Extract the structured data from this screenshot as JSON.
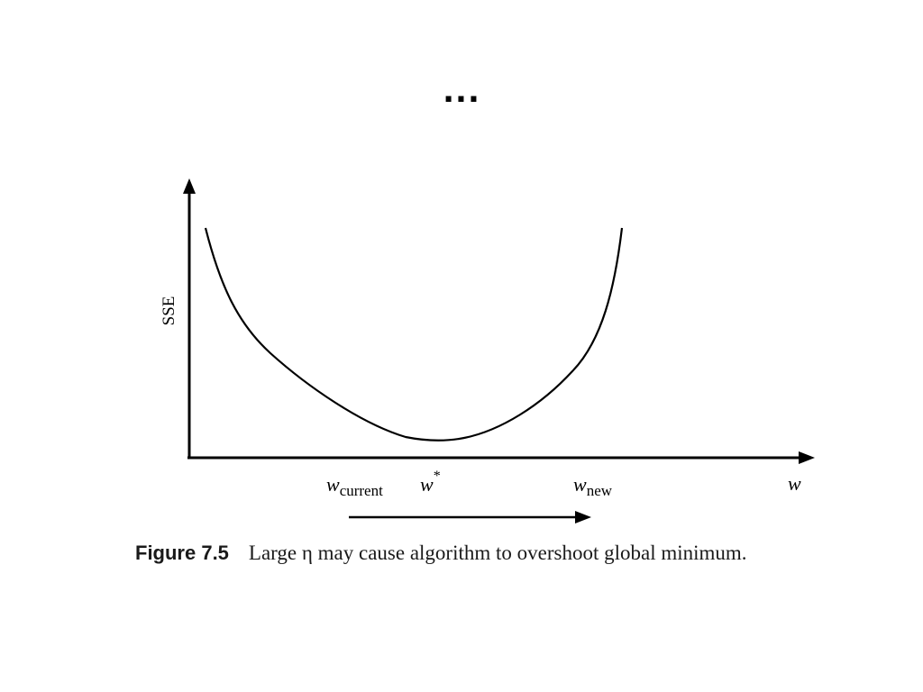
{
  "slide": {
    "title": "..."
  },
  "diagram": {
    "y_axis_label": "SSE",
    "x_axis_label": "w",
    "marks": {
      "w_current": {
        "base": "w",
        "sub": "current"
      },
      "w_star": {
        "base": "w",
        "sup": "*"
      },
      "w_new": {
        "base": "w",
        "sub": "new"
      }
    }
  },
  "caption": {
    "label": "Figure 7.5",
    "text": "Large η may cause algorithm to overshoot global minimum."
  }
}
